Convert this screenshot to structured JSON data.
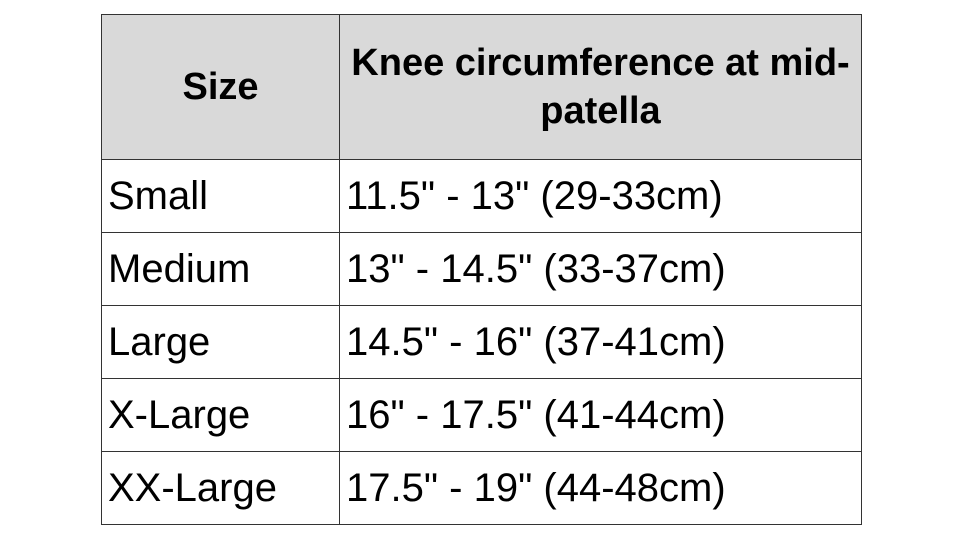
{
  "table": {
    "header": [
      "Size",
      "Knee circumference at mid-patella"
    ],
    "rows": [
      [
        "Small",
        "11.5\" - 13\" (29-33cm)"
      ],
      [
        "Medium",
        "13\" - 14.5\" (33-37cm)"
      ],
      [
        "Large",
        "14.5\" - 16\" (37-41cm)"
      ],
      [
        "X-Large",
        "16\" - 17.5\" (41-44cm)"
      ],
      [
        "XX-Large",
        "17.5\" - 19\" (44-48cm)"
      ]
    ]
  }
}
